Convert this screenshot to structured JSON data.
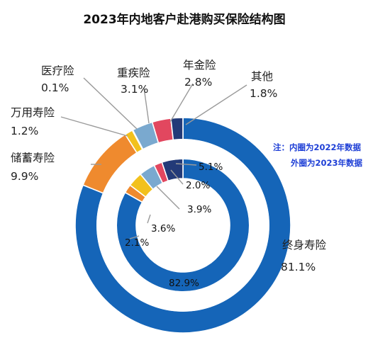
{
  "colors": {
    "终身寿险": "#1565b8",
    "储蓄寿险": "#ef8a2e",
    "万用寿险": "#f2c11d",
    "医疗险": "#cfcfcf",
    "重疾险": "#7aa9cf",
    "年金险": "#e2475f",
    "其他": "#233a78",
    "note": "#1e3fd6"
  },
  "chart_data": {
    "type": "donut",
    "title": "2023年内地客户赴港购买保险结构图",
    "note_title": "注：内圈为2022年数据",
    "note_sub": "外圈为2023年数据",
    "series": [
      {
        "name": "外圈为2023年数据",
        "year": "2023",
        "ring": "outer",
        "slices": [
          {
            "name": "终身寿险",
            "value": 81.1,
            "label": "81.1%"
          },
          {
            "name": "储蓄寿险",
            "value": 9.9,
            "label": "9.9%"
          },
          {
            "name": "万用寿险",
            "value": 1.2,
            "label": "1.2%"
          },
          {
            "name": "医疗险",
            "value": 0.1,
            "label": "0.1%"
          },
          {
            "name": "重疾险",
            "value": 3.1,
            "label": "3.1%"
          },
          {
            "name": "年金险",
            "value": 2.8,
            "label": "2.8%"
          },
          {
            "name": "其他",
            "value": 1.8,
            "label": "1.8%"
          }
        ]
      },
      {
        "name": "内圈为2022年数据",
        "year": "2022",
        "ring": "inner",
        "slices": [
          {
            "name": "终身寿险",
            "value": 82.9,
            "label": "82.9%"
          },
          {
            "name": "储蓄寿险",
            "value": 2.1,
            "label": "2.1%"
          },
          {
            "name": "万用寿险",
            "value": 3.6,
            "label": "3.6%"
          },
          {
            "name": "重疾险",
            "value": 3.9,
            "label": "3.9%"
          },
          {
            "name": "年金险",
            "value": 2.0,
            "label": "2.0%"
          },
          {
            "name": "其他",
            "value": 5.1,
            "label": "5.1%"
          }
        ]
      }
    ]
  }
}
